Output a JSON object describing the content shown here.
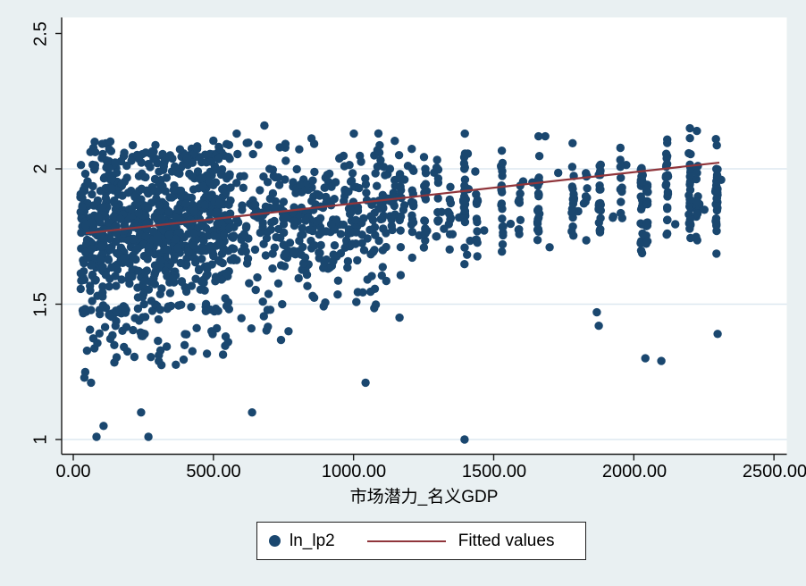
{
  "window": {
    "background": "#e9f0f2"
  },
  "chart_data": {
    "type": "scatter",
    "title": "",
    "xlabel": "市场潜力_名义GDP",
    "ylabel": "",
    "x_ticks": [
      0,
      500,
      1000,
      1500,
      2000,
      2500
    ],
    "x_tick_labels": [
      "0.00",
      "500.00",
      "1000.00",
      "1500.00",
      "2000.00",
      "2500.00"
    ],
    "y_ticks": [
      1,
      1.5,
      2,
      2.5
    ],
    "y_tick_labels": [
      "1",
      "1.5",
      "2",
      "2.5"
    ],
    "xlim": [
      -41,
      2545
    ],
    "ylim": [
      0.947,
      2.559
    ],
    "grid_y_values": [
      1,
      1.5,
      2
    ],
    "grid_on": true,
    "legend_position": "bottom-center",
    "colors": {
      "marker": "#1a476f",
      "fit_line": "#90353b",
      "grid": "#dde8f0",
      "axis": "#1a1a1a",
      "plot_bg": "#ffffff",
      "outer_bg": "#e9f0f2",
      "legend_border": "#1f1f1f"
    },
    "marker_radius": 4.7,
    "fitted_line": {
      "x1": 45,
      "y1": 1.762,
      "x2": 2305,
      "y2": 2.023
    },
    "legend": {
      "entries": [
        {
          "label": "ln_lp2",
          "type": "marker"
        },
        {
          "label": "Fitted values",
          "type": "line"
        }
      ]
    },
    "scatter": {
      "seed": 7,
      "clusters": [
        {
          "x0": 25,
          "x1": 560,
          "n": 760,
          "y0": 1.765,
          "y1": 1.805,
          "sd": 0.135,
          "lo": 1.46,
          "hi": 2.065
        },
        {
          "x0": 60,
          "x1": 560,
          "n": 55,
          "y0": 2.05,
          "y1": 2.06,
          "sd": 0.028,
          "lo": 2.0,
          "hi": 2.16
        },
        {
          "x0": 30,
          "x1": 560,
          "n": 85,
          "y0": 1.4,
          "y1": 1.44,
          "sd": 0.085,
          "lo": 1.18,
          "hi": 1.5
        },
        {
          "x0": 560,
          "x1": 1150,
          "n": 340,
          "y0": 1.8,
          "y1": 1.855,
          "sd": 0.115,
          "lo": 1.5,
          "hi": 2.07
        },
        {
          "x0": 560,
          "x1": 1150,
          "n": 12,
          "y0": 2.08,
          "y1": 2.1,
          "sd": 0.022,
          "lo": 2.06,
          "hi": 2.15
        },
        {
          "x0": 560,
          "x1": 1150,
          "n": 26,
          "y0": 1.5,
          "y1": 1.54,
          "sd": 0.06,
          "lo": 1.36,
          "hi": 1.6
        },
        {
          "x0": 1150,
          "x1": 1450,
          "n": 30,
          "y0": 1.84,
          "y1": 1.86,
          "sd": 0.1,
          "lo": 1.55,
          "hi": 2.06
        },
        {
          "x0": 1450,
          "x1": 2350,
          "n": 18,
          "y0": 1.87,
          "y1": 1.9,
          "sd": 0.1,
          "lo": 1.58,
          "hi": 2.06
        }
      ],
      "columns": [
        {
          "x": 1165,
          "n": 12,
          "yc": 1.86,
          "sd": 0.09
        },
        {
          "x": 1210,
          "n": 14,
          "yc": 1.84,
          "sd": 0.09
        },
        {
          "x": 1255,
          "n": 16,
          "yc": 1.85,
          "sd": 0.1
        },
        {
          "x": 1300,
          "n": 10,
          "yc": 1.88,
          "sd": 0.08
        },
        {
          "x": 1345,
          "n": 8,
          "yc": 1.82,
          "sd": 0.09
        },
        {
          "x": 1395,
          "n": 18,
          "yc": 1.86,
          "sd": 0.1
        },
        {
          "x": 1440,
          "n": 12,
          "yc": 1.83,
          "sd": 0.09
        },
        {
          "x": 1530,
          "n": 20,
          "yc": 1.88,
          "sd": 0.1
        },
        {
          "x": 1592,
          "n": 10,
          "yc": 1.86,
          "sd": 0.09
        },
        {
          "x": 1660,
          "n": 22,
          "yc": 1.9,
          "sd": 0.1
        },
        {
          "x": 1782,
          "n": 16,
          "yc": 1.88,
          "sd": 0.1
        },
        {
          "x": 1830,
          "n": 8,
          "yc": 1.92,
          "sd": 0.07
        },
        {
          "x": 1878,
          "n": 24,
          "yc": 1.9,
          "sd": 0.1
        },
        {
          "x": 1955,
          "n": 10,
          "yc": 1.93,
          "sd": 0.08
        },
        {
          "x": 2028,
          "n": 26,
          "yc": 1.9,
          "sd": 0.11
        },
        {
          "x": 2048,
          "n": 18,
          "yc": 1.86,
          "sd": 0.1
        },
        {
          "x": 2118,
          "n": 22,
          "yc": 1.92,
          "sd": 0.1
        },
        {
          "x": 2200,
          "n": 26,
          "yc": 1.93,
          "sd": 0.1
        },
        {
          "x": 2225,
          "n": 14,
          "yc": 1.85,
          "sd": 0.09
        },
        {
          "x": 2295,
          "n": 30,
          "yc": 1.9,
          "sd": 0.11
        }
      ],
      "points": [
        [
          83,
          1.01
        ],
        [
          108,
          1.05
        ],
        [
          242,
          1.1
        ],
        [
          268,
          1.01
        ],
        [
          638,
          1.1
        ],
        [
          768,
          1.4
        ],
        [
          1043,
          1.21
        ],
        [
          1164,
          1.45
        ],
        [
          1396,
          1.0
        ],
        [
          1868,
          1.47
        ],
        [
          1875,
          1.42
        ],
        [
          2041,
          1.3
        ],
        [
          2098,
          1.29
        ],
        [
          2299,
          1.39
        ],
        [
          583,
          2.13
        ],
        [
          682,
          2.16
        ],
        [
          1001,
          2.13
        ],
        [
          1397,
          2.13
        ],
        [
          1684,
          2.12
        ],
        [
          1660,
          2.12
        ],
        [
          2200,
          2.15
        ],
        [
          2225,
          2.14
        ],
        [
          2293,
          2.11
        ]
      ]
    }
  }
}
